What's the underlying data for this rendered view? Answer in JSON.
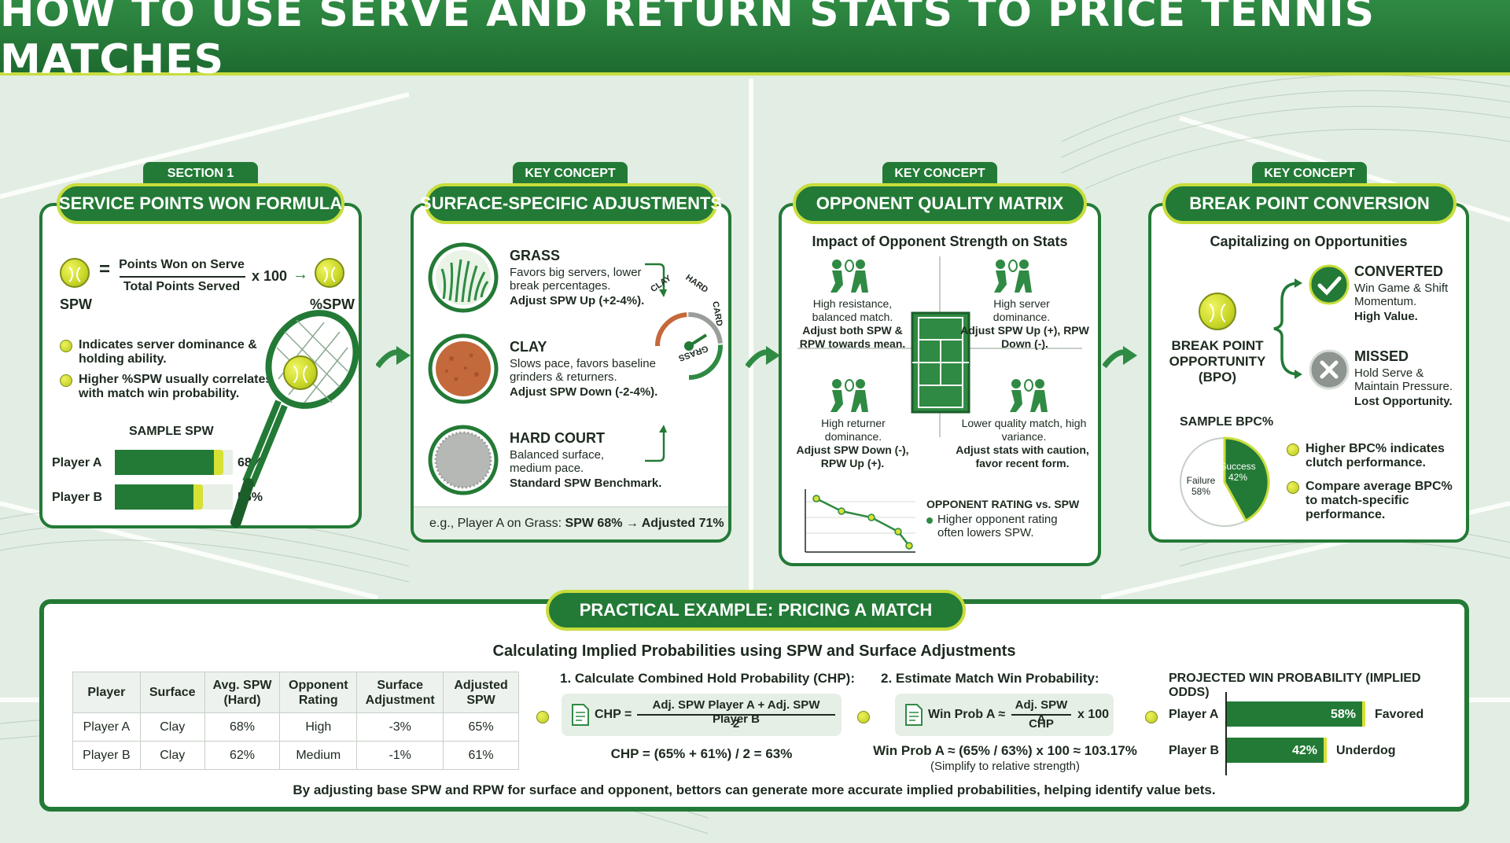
{
  "title": "HOW TO USE SERVE AND RETURN STATS TO PRICE TENNIS MATCHES",
  "colors": {
    "primary": "#237a36",
    "accent": "#c8dd3c",
    "background": "#e2ede3"
  },
  "section1": {
    "tag": "SECTION 1",
    "title": "SERVICE POINTS WON FORMULA",
    "spw_label": "SPW",
    "equals": "=",
    "numerator": "Points Won on Serve",
    "denominator": "Total Points Served",
    "times": "x 100",
    "arrow": "→",
    "result_label": "%SPW",
    "bullets": [
      "Indicates server dominance & holding ability.",
      "Higher %SPW usually correlates with match win probability."
    ],
    "chart_title": "SAMPLE SPW",
    "players": [
      {
        "name": "Player A",
        "value_label": "68%",
        "value": 68
      },
      {
        "name": "Player B",
        "value_label": "55%",
        "value": 55
      }
    ],
    "icons": [
      "tennis-ball-icon",
      "tennis-racket-icon"
    ]
  },
  "section2": {
    "tag": "KEY CONCEPT",
    "title": "SURFACE-SPECIFIC ADJUSTMENTS",
    "surfaces": [
      {
        "name": "GRASS",
        "desc": "Favors big servers, lower break percentages.",
        "adjust": "Adjust SPW Up (+2-4%)."
      },
      {
        "name": "CLAY",
        "desc": "Slows pace, favors baseline grinders & returners.",
        "adjust": "Adjust SPW Down (-2-4%)."
      },
      {
        "name": "HARD COURT",
        "desc": "Balanced surface, medium pace.",
        "adjust": "Standard SPW Benchmark."
      }
    ],
    "gauge_labels": [
      "CLAY",
      "HARD",
      "CARD",
      "GRASS"
    ],
    "example_prefix": "e.g., Player A on Grass: ",
    "example_value": "SPW 68% → Adjusted 71%"
  },
  "section3": {
    "tag": "KEY CONCEPT",
    "title": "OPPONENT QUALITY MATRIX",
    "subtitle": "Impact of Opponent Strength on Stats",
    "quadrants": [
      {
        "desc": "High resistance, balanced match.",
        "adjust": "Adjust both SPW & RPW towards mean."
      },
      {
        "desc": "High server dominance.",
        "adjust": "Adjust SPW Up (+), RPW Down (-)."
      },
      {
        "desc": "High returner dominance.",
        "adjust": "Adjust SPW Down (-), RPW Up (+)."
      },
      {
        "desc": "Lower quality match, high variance.",
        "adjust": "Adjust stats with caution, favor recent form."
      }
    ],
    "chart_title": "OPPONENT RATING vs. SPW",
    "chart_note": "Higher opponent rating often lowers SPW."
  },
  "section4": {
    "tag": "KEY CONCEPT",
    "title": "BREAK POINT CONVERSION",
    "subtitle": "Capitalizing on Opportunities",
    "bpo_label": "BREAK POINT OPPORTUNITY (BPO)",
    "converted_title": "CONVERTED",
    "converted_desc": "Win Game & Shift Momentum.",
    "converted_value": "High Value.",
    "missed_title": "MISSED",
    "missed_desc": "Hold Serve & Maintain Pressure.",
    "missed_value": "Lost Opportunity.",
    "pie_title": "SAMPLE BPC%",
    "pie": [
      {
        "label": "Success",
        "value_label": "42%",
        "value": 42
      },
      {
        "label": "Failure",
        "value_label": "58%",
        "value": 58
      }
    ],
    "bullets": [
      "Higher BPC% indicates clutch performance.",
      "Compare average BPC% to match-specific performance."
    ]
  },
  "practical": {
    "title": "PRACTICAL EXAMPLE: PRICING A MATCH",
    "subtitle": "Calculating Implied Probabilities using SPW and Surface Adjustments",
    "table": {
      "headers": [
        "Player",
        "Surface",
        "Avg. SPW (Hard)",
        "Opponent Rating",
        "Surface Adjustment",
        "Adjusted SPW"
      ],
      "rows": [
        [
          "Player A",
          "Clay",
          "68%",
          "High",
          "-3%",
          "65%"
        ],
        [
          "Player B",
          "Clay",
          "62%",
          "Medium",
          "-1%",
          "61%"
        ]
      ]
    },
    "step1_title": "1. Calculate Combined Hold Probability (CHP):",
    "step1_lhs": "CHP =",
    "step1_num": "Adj. SPW Player A + Adj. SPW Player B",
    "step1_den": "2",
    "step1_result": "CHP = (65% + 61%) / 2 = 63%",
    "step2_title": "2. Estimate Match Win Probability:",
    "step2_lhs": "Win Prob A ≈",
    "step2_num": "Adj. SPW A",
    "step2_den": "CHP",
    "step2_times": "x 100",
    "step2_result": "Win Prob A ≈ (65% / 63%) x 100 ≈ 103.17%",
    "step2_note": "(Simplify to relative strength)",
    "proj_title": "PROJECTED WIN PROBABILITY (IMPLIED ODDS)",
    "proj": [
      {
        "name": "Player A",
        "value_label": "58%",
        "value": 58,
        "status": "Favored"
      },
      {
        "name": "Player B",
        "value_label": "42%",
        "value": 42,
        "status": "Underdog"
      }
    ],
    "footer": "By adjusting base SPW and RPW for surface and opponent, bettors can generate more accurate implied probabilities, helping identify value bets."
  }
}
